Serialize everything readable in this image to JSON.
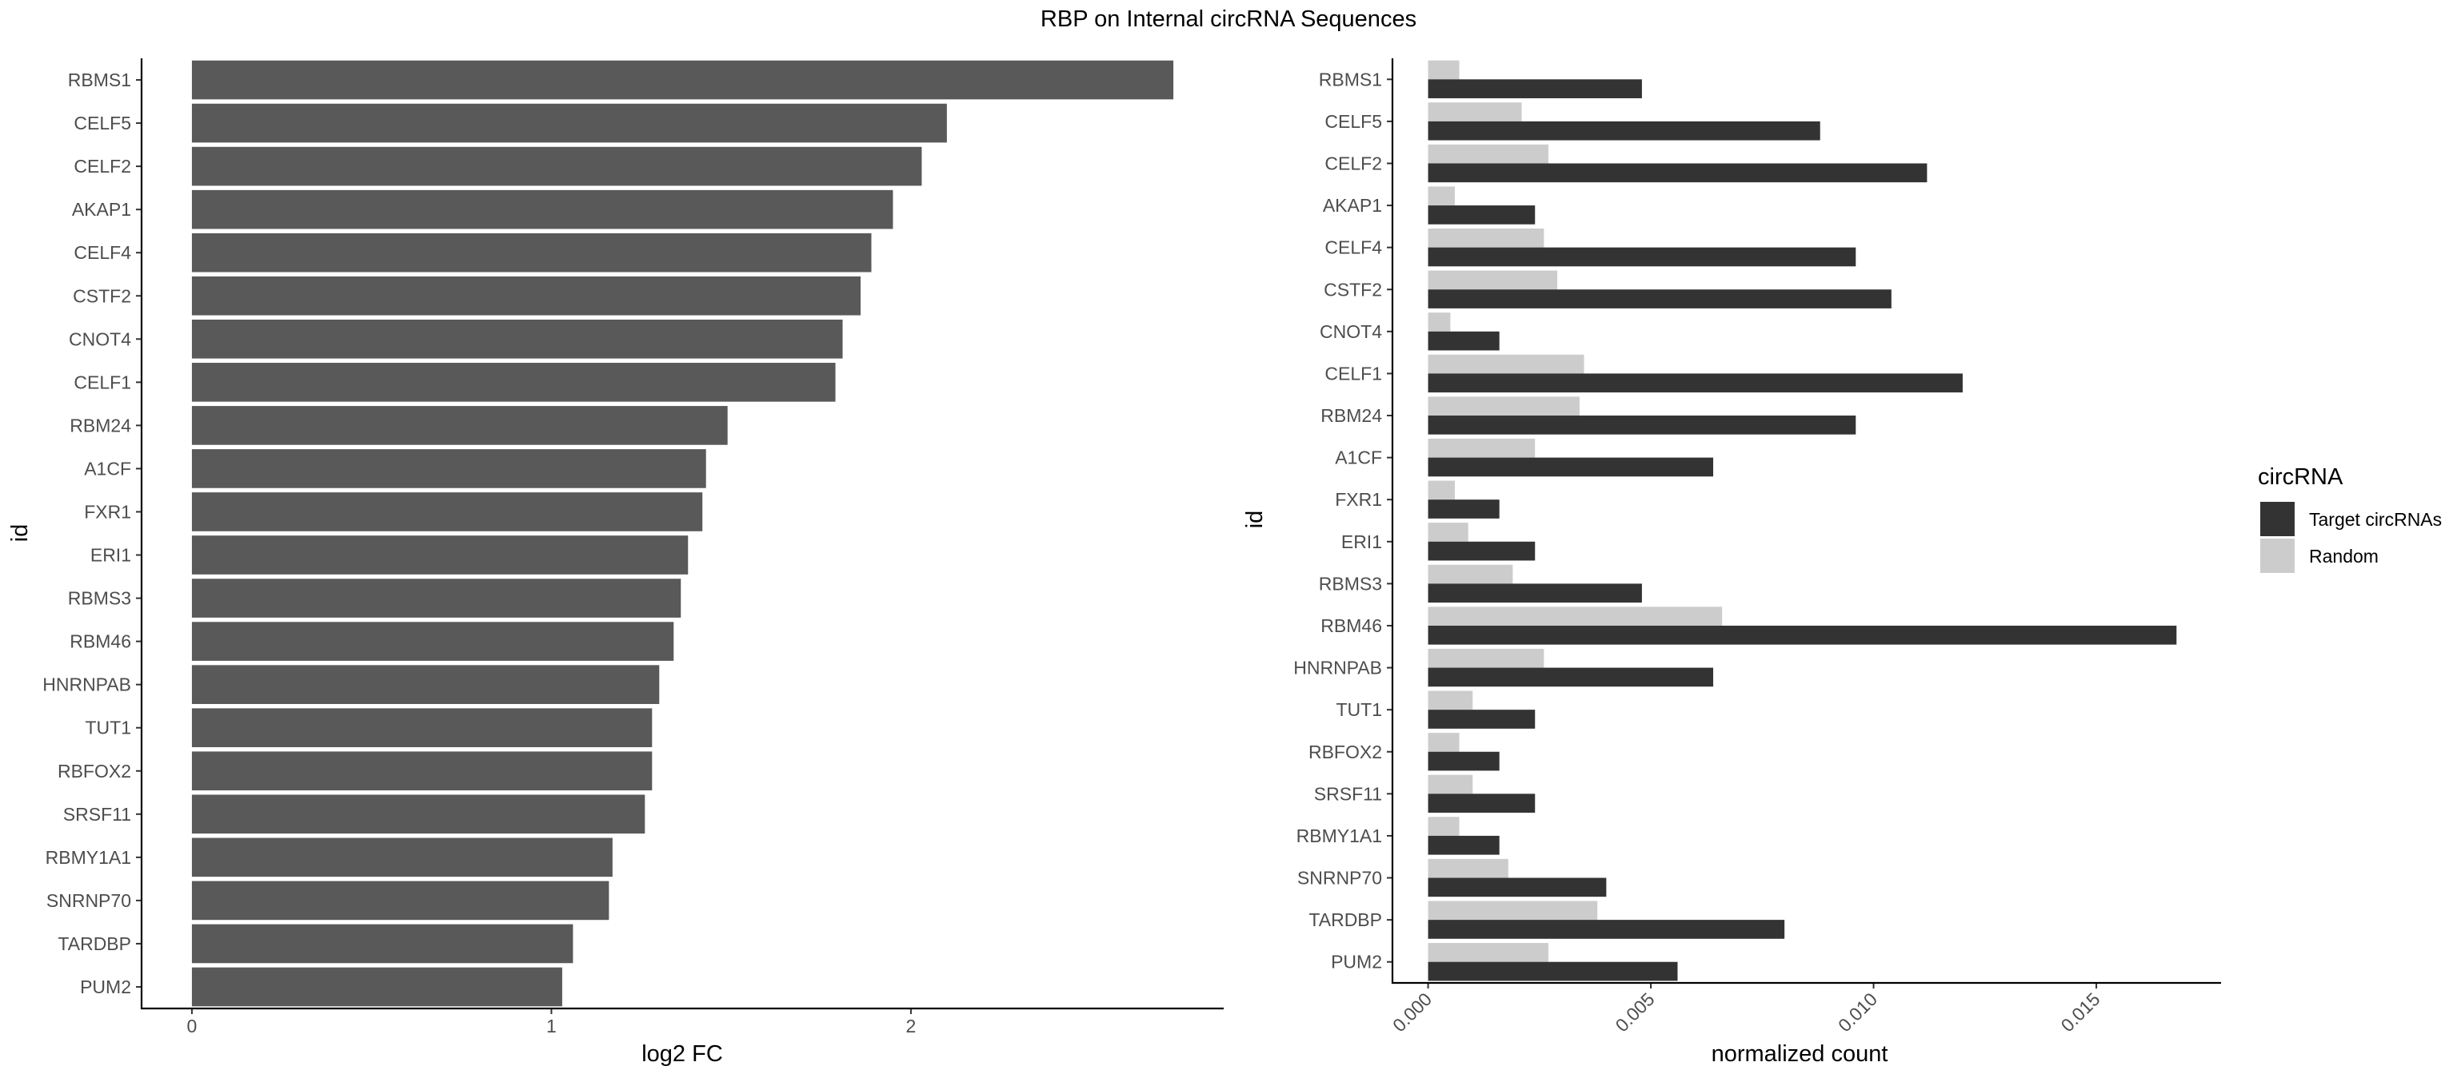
{
  "title": "RBP on Internal circRNA Sequences",
  "chart_data": [
    {
      "type": "bar",
      "orientation": "horizontal",
      "xlabel": "log2 FC",
      "ylabel": "id",
      "xlim": [
        -0.14,
        2.87
      ],
      "xticks": [
        0,
        1,
        2
      ],
      "grid": false,
      "bar_color": "#595959",
      "categories": [
        "RBMS1",
        "CELF5",
        "CELF2",
        "AKAP1",
        "CELF4",
        "CSTF2",
        "CNOT4",
        "CELF1",
        "RBM24",
        "A1CF",
        "FXR1",
        "ERI1",
        "RBMS3",
        "RBM46",
        "HNRNPAB",
        "TUT1",
        "RBFOX2",
        "SRSF11",
        "RBMY1A1",
        "SNRNP70",
        "TARDBP",
        "PUM2"
      ],
      "values": [
        2.73,
        2.1,
        2.03,
        1.95,
        1.89,
        1.86,
        1.81,
        1.79,
        1.49,
        1.43,
        1.42,
        1.38,
        1.36,
        1.34,
        1.3,
        1.28,
        1.28,
        1.26,
        1.17,
        1.16,
        1.06,
        1.03
      ]
    },
    {
      "type": "bar",
      "orientation": "horizontal",
      "grouped": true,
      "xlabel": "normalized count",
      "ylabel": "id",
      "xlim": [
        -0.0008,
        0.0178
      ],
      "xticks": [
        0.0,
        0.005,
        0.01,
        0.015
      ],
      "xtick_labels": [
        "0.000",
        "0.005",
        "0.010",
        "0.015"
      ],
      "grid": false,
      "legend": {
        "title": "circRNA",
        "position": "right"
      },
      "categories": [
        "RBMS1",
        "CELF5",
        "CELF2",
        "AKAP1",
        "CELF4",
        "CSTF2",
        "CNOT4",
        "CELF1",
        "RBM24",
        "A1CF",
        "FXR1",
        "ERI1",
        "RBMS3",
        "RBM46",
        "HNRNPAB",
        "TUT1",
        "RBFOX2",
        "SRSF11",
        "RBMY1A1",
        "SNRNP70",
        "TARDBP",
        "PUM2"
      ],
      "series": [
        {
          "name": "Target circRNAs",
          "color": "#333333",
          "values": [
            0.0048,
            0.0088,
            0.0112,
            0.0024,
            0.0096,
            0.0104,
            0.0016,
            0.012,
            0.0096,
            0.0064,
            0.0016,
            0.0024,
            0.0048,
            0.0168,
            0.0064,
            0.0024,
            0.0016,
            0.0024,
            0.0016,
            0.004,
            0.008,
            0.0056
          ]
        },
        {
          "name": "Random",
          "color": "#cccccc",
          "values": [
            0.0007,
            0.0021,
            0.0027,
            0.0006,
            0.0026,
            0.0029,
            0.0005,
            0.0035,
            0.0034,
            0.0024,
            0.0006,
            0.0009,
            0.0019,
            0.0066,
            0.0026,
            0.001,
            0.0007,
            0.001,
            0.0007,
            0.0018,
            0.0038,
            0.0027
          ]
        }
      ]
    }
  ]
}
